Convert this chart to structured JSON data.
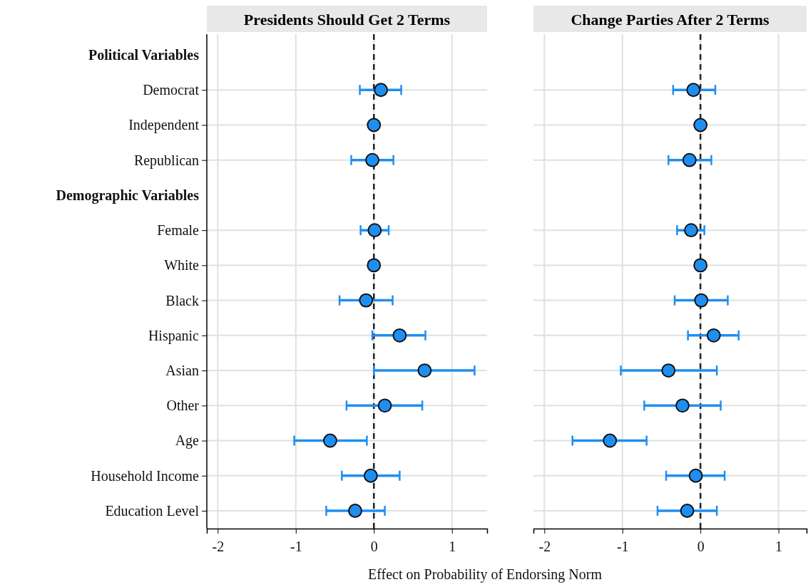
{
  "chart_data": [
    {
      "type": "scatter",
      "orientation": "horizontal",
      "title": "Presidents Should Get 2 Terms",
      "xlabel": "Effect on Probability of  Endorsing Norm",
      "categories": [
        "Political Variables",
        "Democrat",
        "Independent",
        "Republican",
        "Demographic Variables",
        "Female",
        "White",
        "Black",
        "Hispanic",
        "Asian",
        "Other",
        "Age",
        "Household Income",
        "Education Level"
      ],
      "xlim": [
        -2.14,
        1.45
      ],
      "xticks": [
        -2,
        -1,
        0,
        1
      ],
      "grid": true,
      "ref_lines": [
        {
          "axis": "x",
          "value": 0,
          "color": "#222222",
          "line_style": "dashed"
        }
      ],
      "series": [
        {
          "color": "#1f8ef1",
          "marker": "circle",
          "values": [
            null,
            0.09,
            0,
            -0.02,
            null,
            0.01,
            0,
            -0.1,
            0.33,
            0.65,
            0.14,
            -0.56,
            -0.04,
            -0.24
          ],
          "errors": [
            null,
            [
              -0.18,
              0.35
            ],
            null,
            [
              -0.29,
              0.25
            ],
            null,
            [
              -0.17,
              0.19
            ],
            null,
            [
              -0.44,
              0.24
            ],
            [
              -0.02,
              0.66
            ],
            [
              0.0,
              1.29
            ],
            [
              -0.35,
              0.62
            ],
            [
              -1.02,
              -0.09
            ],
            [
              -0.41,
              0.33
            ],
            [
              -0.61,
              0.14
            ]
          ]
        }
      ]
    },
    {
      "type": "scatter",
      "orientation": "horizontal",
      "title": "Change Parties After 2 Terms",
      "tick_labels": "x",
      "categories": [
        null,
        null,
        null,
        null,
        null,
        null,
        null,
        null,
        null,
        null,
        null,
        null,
        null,
        null
      ],
      "xlim": [
        -2.14,
        1.36
      ],
      "xticks": [
        -2,
        -1,
        0,
        1
      ],
      "grid": true,
      "ref_lines": [
        {
          "axis": "x",
          "value": 0,
          "color": "#222222",
          "line_style": "dashed"
        }
      ],
      "series": [
        {
          "color": "#1f8ef1",
          "marker": "circle",
          "values": [
            null,
            -0.09,
            0,
            -0.14,
            null,
            -0.12,
            0,
            0.01,
            0.17,
            -0.41,
            -0.23,
            -1.16,
            -0.06,
            -0.17
          ],
          "errors": [
            null,
            [
              -0.35,
              0.19
            ],
            null,
            [
              -0.41,
              0.14
            ],
            null,
            [
              -0.3,
              0.05
            ],
            null,
            [
              -0.33,
              0.35
            ],
            [
              -0.16,
              0.49
            ],
            [
              -1.02,
              0.21
            ],
            [
              -0.72,
              0.26
            ],
            [
              -1.64,
              -0.69
            ],
            [
              -0.44,
              0.31
            ],
            [
              -0.55,
              0.21
            ]
          ]
        }
      ]
    }
  ]
}
